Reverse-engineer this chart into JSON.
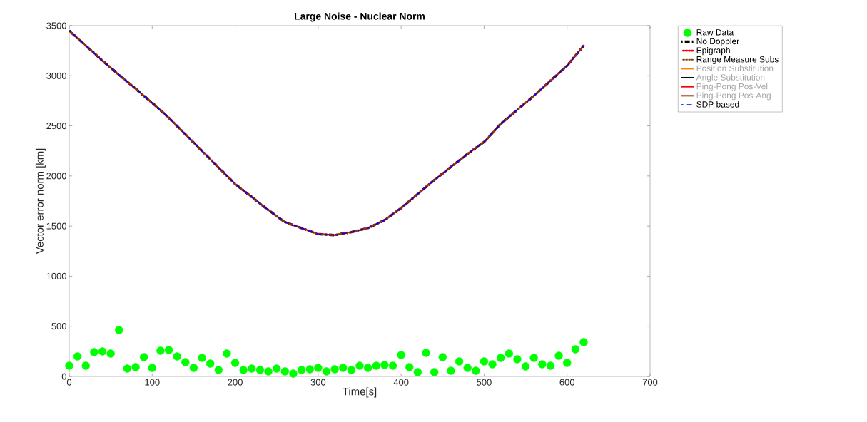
{
  "chart_data": {
    "type": "line",
    "title": "Large Noise - Nuclear Norm",
    "xlabel": "Time[s]",
    "ylabel": "Vector error norm [km]",
    "xlim": [
      0,
      700
    ],
    "xticks": [
      0,
      100,
      200,
      300,
      400,
      500,
      600,
      700
    ],
    "ylim": [
      0,
      3500
    ],
    "yticks": [
      0,
      500,
      1000,
      1500,
      2000,
      2500,
      3000,
      3500
    ],
    "grid": false,
    "legend": "top right",
    "series": [
      {
        "name": "Raw Data",
        "type": "scatter",
        "marker": "circle",
        "color": "#00ff00",
        "x": [
          0,
          10,
          20,
          30,
          40,
          50,
          60,
          70,
          80,
          90,
          100,
          110,
          120,
          130,
          140,
          150,
          160,
          170,
          180,
          190,
          200,
          210,
          220,
          230,
          240,
          250,
          260,
          270,
          280,
          290,
          300,
          310,
          320,
          330,
          340,
          350,
          360,
          370,
          380,
          390,
          400,
          410,
          420,
          430,
          440,
          450,
          460,
          470,
          480,
          490,
          500,
          510,
          520,
          530,
          540,
          550,
          560,
          570,
          580,
          590,
          600,
          610,
          620
        ],
        "values": [
          107,
          199,
          107,
          242,
          249,
          228,
          462,
          78,
          92,
          192,
          85,
          256,
          263,
          199,
          142,
          85,
          185,
          128,
          64,
          228,
          135,
          64,
          78,
          64,
          50,
          78,
          50,
          28,
          64,
          71,
          85,
          50,
          71,
          85,
          64,
          107,
          85,
          107,
          114,
          107,
          213,
          92,
          43,
          235,
          43,
          192,
          57,
          149,
          85,
          57,
          149,
          121,
          185,
          228,
          171,
          100,
          185,
          121,
          107,
          206,
          135,
          270,
          341
        ]
      },
      {
        "name": "No Doppler",
        "line_style": "dashdot",
        "color": "#000000",
        "x": [
          0,
          40,
          80,
          100,
          120,
          160,
          200,
          240,
          260,
          280,
          300,
          320,
          340,
          360,
          380,
          400,
          440,
          480,
          500,
          520,
          560,
          600,
          620
        ],
        "values": [
          3450,
          3150,
          2870,
          2730,
          2580,
          2250,
          1920,
          1660,
          1540,
          1480,
          1420,
          1410,
          1440,
          1480,
          1560,
          1680,
          1960,
          2220,
          2340,
          2520,
          2800,
          3100,
          3300
        ]
      },
      {
        "name": "Epigraph",
        "line_style": "dotted",
        "color": "#ff0000",
        "x": [
          0,
          40,
          80,
          100,
          120,
          160,
          200,
          240,
          260,
          280,
          300,
          320,
          340,
          360,
          380,
          400,
          440,
          480,
          500,
          520,
          560,
          600,
          620
        ],
        "values": [
          3450,
          3150,
          2870,
          2730,
          2580,
          2250,
          1920,
          1660,
          1540,
          1480,
          1420,
          1410,
          1440,
          1480,
          1560,
          1680,
          1960,
          2220,
          2340,
          2520,
          2800,
          3100,
          3300
        ]
      },
      {
        "name": "Range Measure Subs",
        "line_style": "dotted",
        "color": "#7f3f00",
        "x": [
          0,
          40,
          80,
          100,
          120,
          160,
          200,
          240,
          260,
          280,
          300,
          320,
          340,
          360,
          380,
          400,
          440,
          480,
          500,
          520,
          560,
          600,
          620
        ],
        "values": [
          3450,
          3150,
          2870,
          2730,
          2580,
          2250,
          1920,
          1660,
          1540,
          1480,
          1420,
          1410,
          1440,
          1480,
          1560,
          1680,
          1960,
          2220,
          2340,
          2520,
          2800,
          3100,
          3300
        ]
      },
      {
        "name": "Position Substitution",
        "line_style": "solid",
        "color": "#ff8000",
        "values": [
          null
        ]
      },
      {
        "name": "Angle Substitution",
        "line_style": "solid",
        "color": "#000000",
        "values": [
          null
        ]
      },
      {
        "name": "Ping-Pong Pos-Vel",
        "line_style": "solid",
        "color": "#ff0000",
        "values": [
          null
        ]
      },
      {
        "name": "Ping-Pong Pos-Ang",
        "line_style": "solid",
        "color": "#8b3a0f",
        "values": [
          null
        ]
      },
      {
        "name": "SDP based",
        "line_style": "dashed",
        "color": "#0000ff",
        "x": [
          0,
          40,
          80,
          100,
          120,
          160,
          200,
          240,
          260,
          280,
          300,
          320,
          340,
          360,
          380,
          400,
          440,
          480,
          500,
          520,
          560,
          600,
          620
        ],
        "values": [
          3450,
          3150,
          2870,
          2730,
          2580,
          2250,
          1920,
          1660,
          1540,
          1480,
          1420,
          1410,
          1440,
          1480,
          1560,
          1680,
          1960,
          2220,
          2340,
          2520,
          2800,
          3100,
          3300
        ]
      }
    ]
  }
}
